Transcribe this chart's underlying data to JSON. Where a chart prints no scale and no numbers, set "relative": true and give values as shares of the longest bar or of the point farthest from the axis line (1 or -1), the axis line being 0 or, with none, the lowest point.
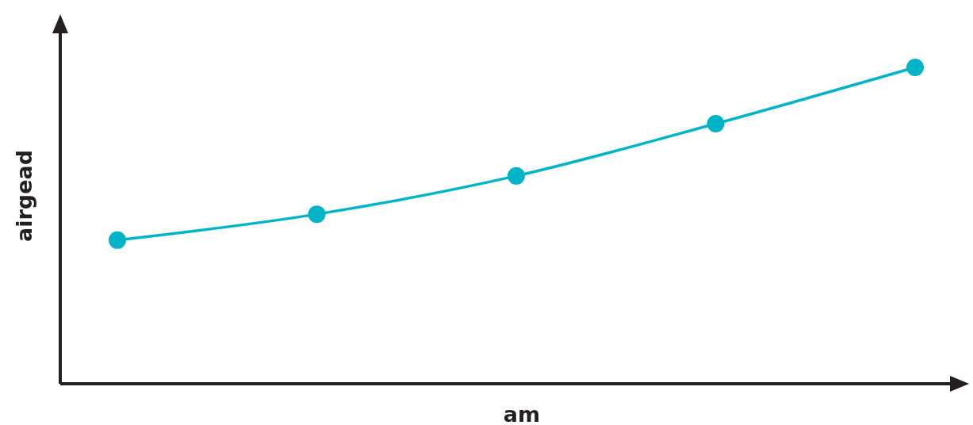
{
  "chart_data": {
    "type": "line",
    "xlabel": "am",
    "ylabel": "airgead",
    "relative": true,
    "categories": [
      null,
      null,
      null,
      null,
      null
    ],
    "marker": "circle",
    "line_style": "solid",
    "series": [
      {
        "color": "#00b4c8",
        "values": [
          0.454,
          0.536,
          0.657,
          0.822,
          1
        ]
      }
    ]
  }
}
